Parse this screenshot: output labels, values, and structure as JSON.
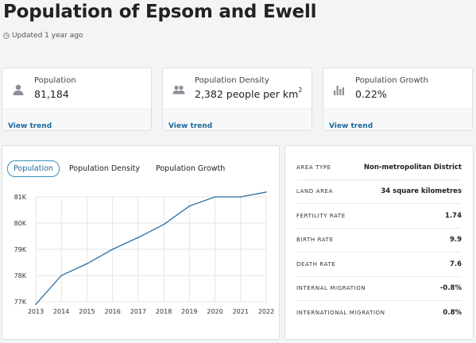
{
  "page": {
    "title": "Population of Epsom and Ewell",
    "updated": "Updated 1 year ago"
  },
  "cards": [
    {
      "icon": "person-icon",
      "label": "Population",
      "value": "81,184",
      "link": "View trend"
    },
    {
      "icon": "people-icon",
      "label": "Population Density",
      "value": "2,382 people per km",
      "value_sup": "2",
      "link": "View trend"
    },
    {
      "icon": "bar-chart-icon",
      "label": "Population Growth",
      "value": "0.22%",
      "link": "View trend"
    }
  ],
  "tabs": [
    {
      "label": "Population",
      "active": true
    },
    {
      "label": "Population Density",
      "active": false
    },
    {
      "label": "Population Growth",
      "active": false
    }
  ],
  "chart_data": {
    "type": "line",
    "x": [
      2013,
      2014,
      2015,
      2016,
      2017,
      2018,
      2019,
      2020,
      2021,
      2022
    ],
    "series": [
      {
        "values": [
          76900,
          78000,
          78450,
          79000,
          79450,
          79950,
          80650,
          81000,
          81000,
          81184
        ]
      }
    ],
    "ylim": [
      77000,
      81000
    ],
    "yticks": [
      77000,
      78000,
      79000,
      80000,
      81000
    ],
    "ytick_labels": [
      "77K",
      "78K",
      "79K",
      "80K",
      "81K"
    ],
    "xtick_labels": [
      "2013",
      "2014",
      "2015",
      "2016",
      "2017",
      "2018",
      "2019",
      "2020",
      "2021",
      "2022"
    ],
    "grid": "both",
    "line_color": "#2f6f9f",
    "title": "",
    "xlabel": "",
    "ylabel": ""
  },
  "info": [
    {
      "key": "AREA TYPE",
      "value": "Non-metropolitan District"
    },
    {
      "key": "LAND AREA",
      "value": "34 square kilometres"
    },
    {
      "key": "FERTILITY RATE",
      "value": "1.74"
    },
    {
      "key": "BIRTH RATE",
      "value": "9.9"
    },
    {
      "key": "DEATH RATE",
      "value": "7.6"
    },
    {
      "key": "INTERNAL MIGRATION",
      "value": "-0.8%"
    },
    {
      "key": "INTERNATIONAL MIGRATION",
      "value": "0.8%"
    }
  ],
  "colors": {
    "accent": "#1d6a9b",
    "tab_border": "#3a8fbe",
    "icon": "#8a9096"
  }
}
